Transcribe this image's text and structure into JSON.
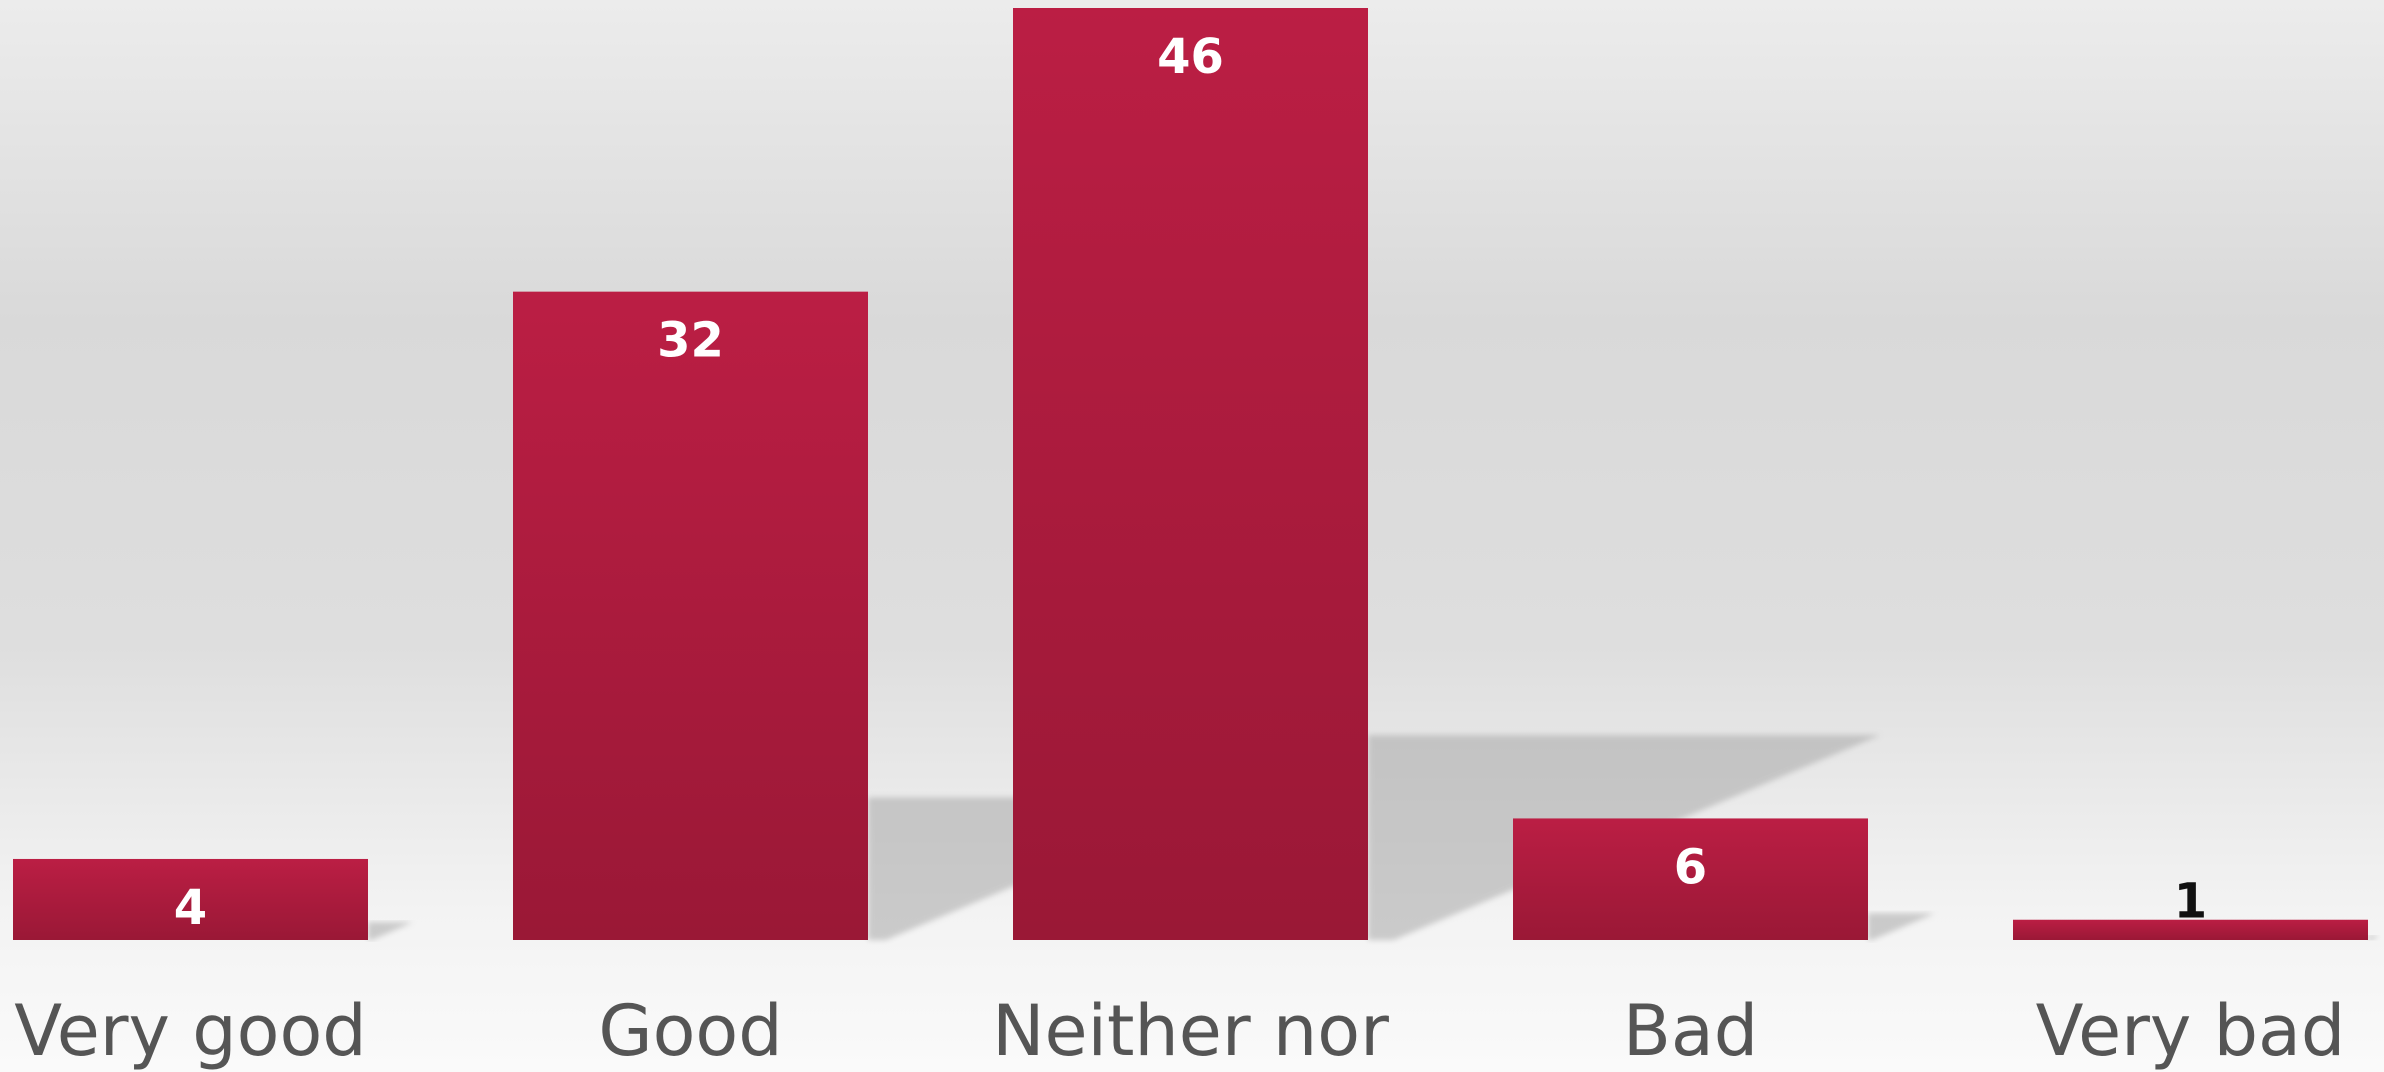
{
  "chart_data": {
    "type": "bar",
    "categories": [
      "Very good",
      "Good",
      "Neither nor",
      "Bad",
      "Very bad"
    ],
    "values": [
      4,
      32,
      46,
      6,
      1
    ],
    "title": "",
    "xlabel": "",
    "ylabel": "",
    "ylim": [
      0,
      46
    ],
    "grid": false,
    "legend": "none",
    "colors": {
      "bar_top": "#bb1e44",
      "bar_bottom": "#9a1836",
      "label_inside": "#ffffff",
      "label_outside": "#111111",
      "category_text": "#555555",
      "shadow": "#a8a8a8"
    }
  }
}
